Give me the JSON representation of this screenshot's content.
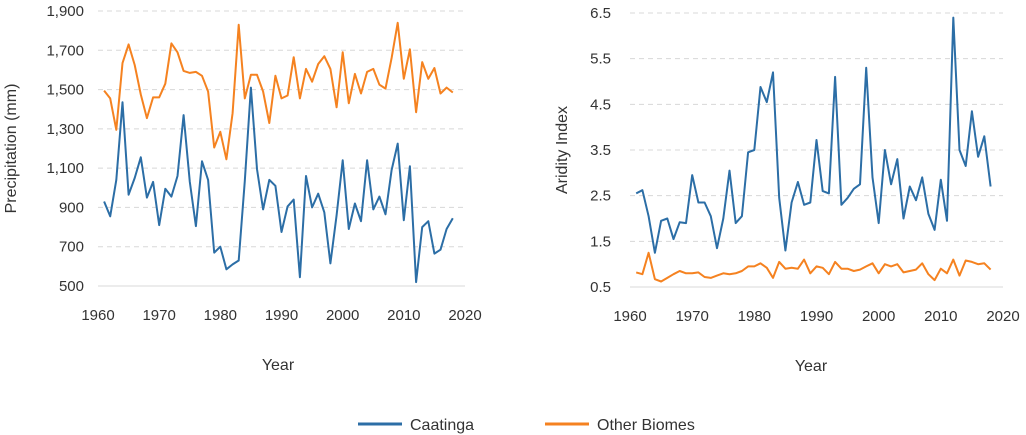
{
  "chart_data": [
    {
      "type": "line",
      "title": "",
      "xlabel": "Year",
      "ylabel": "Precipitation (mm)",
      "xlim": [
        1960,
        2020
      ],
      "ylim": [
        500,
        1900
      ],
      "xticks": [
        "1960",
        "1970",
        "1980",
        "1990",
        "2000",
        "2010",
        "2020"
      ],
      "yticks": [
        "500",
        "700",
        "900",
        "1,100",
        "1,300",
        "1,500",
        "1,700",
        "1,900"
      ],
      "grid": "horizontal dashed",
      "x": [
        1961,
        1962,
        1963,
        1964,
        1965,
        1966,
        1967,
        1968,
        1969,
        1970,
        1971,
        1972,
        1973,
        1974,
        1975,
        1976,
        1977,
        1978,
        1979,
        1980,
        1981,
        1982,
        1983,
        1984,
        1985,
        1986,
        1987,
        1988,
        1989,
        1990,
        1991,
        1992,
        1993,
        1994,
        1995,
        1996,
        1997,
        1998,
        1999,
        2000,
        2001,
        2002,
        2003,
        2004,
        2005,
        2006,
        2007,
        2008,
        2009,
        2010,
        2011,
        2012,
        2013,
        2014,
        2015,
        2016,
        2017,
        2018
      ],
      "series": [
        {
          "name": "Caatinga",
          "color": "#2c6ea6",
          "values": [
            930,
            855,
            1040,
            1435,
            965,
            1050,
            1155,
            950,
            1030,
            810,
            995,
            955,
            1060,
            1370,
            1030,
            805,
            1135,
            1040,
            670,
            700,
            585,
            610,
            630,
            1035,
            1510,
            1095,
            890,
            1040,
            1010,
            775,
            905,
            940,
            545,
            1060,
            900,
            970,
            875,
            615,
            860,
            1140,
            790,
            920,
            830,
            1140,
            890,
            955,
            865,
            1090,
            1225,
            835,
            1110,
            520,
            800,
            830,
            665,
            685,
            790,
            845
          ]
        },
        {
          "name": "Other Biomes",
          "color": "#f58220",
          "values": [
            1495,
            1455,
            1295,
            1635,
            1730,
            1625,
            1475,
            1355,
            1460,
            1460,
            1530,
            1735,
            1690,
            1595,
            1585,
            1590,
            1570,
            1490,
            1205,
            1285,
            1145,
            1380,
            1830,
            1455,
            1575,
            1575,
            1490,
            1330,
            1570,
            1455,
            1470,
            1665,
            1455,
            1605,
            1540,
            1630,
            1670,
            1605,
            1410,
            1690,
            1430,
            1580,
            1480,
            1590,
            1605,
            1525,
            1505,
            1660,
            1840,
            1555,
            1705,
            1385,
            1640,
            1555,
            1610,
            1480,
            1510,
            1485
          ]
        }
      ]
    },
    {
      "type": "line",
      "title": "",
      "xlabel": "Year",
      "ylabel": "Aridity Index",
      "xlim": [
        1960,
        2020
      ],
      "ylim": [
        0.5,
        6.5
      ],
      "xticks": [
        "1960",
        "1970",
        "1980",
        "1990",
        "2000",
        "2010",
        "2020"
      ],
      "yticks": [
        "0.5",
        "1.5",
        "2.5",
        "3.5",
        "4.5",
        "5.5",
        "6.5"
      ],
      "grid": "horizontal dashed",
      "x": [
        1961,
        1962,
        1963,
        1964,
        1965,
        1966,
        1967,
        1968,
        1969,
        1970,
        1971,
        1972,
        1973,
        1974,
        1975,
        1976,
        1977,
        1978,
        1979,
        1980,
        1981,
        1982,
        1983,
        1984,
        1985,
        1986,
        1987,
        1988,
        1989,
        1990,
        1991,
        1992,
        1993,
        1994,
        1995,
        1996,
        1997,
        1998,
        1999,
        2000,
        2001,
        2002,
        2003,
        2004,
        2005,
        2006,
        2007,
        2008,
        2009,
        2010,
        2011,
        2012,
        2013,
        2014,
        2015,
        2016,
        2017,
        2018
      ],
      "series": [
        {
          "name": "Caatinga",
          "color": "#2c6ea6",
          "values": [
            2.55,
            2.62,
            2.05,
            1.25,
            1.95,
            2.0,
            1.55,
            1.92,
            1.9,
            2.95,
            2.35,
            2.35,
            2.05,
            1.35,
            2.0,
            3.05,
            1.9,
            2.05,
            3.45,
            3.5,
            4.88,
            4.55,
            5.2,
            2.45,
            1.3,
            2.35,
            2.8,
            2.3,
            2.35,
            3.72,
            2.6,
            2.55,
            5.1,
            2.3,
            2.45,
            2.65,
            2.75,
            5.3,
            2.9,
            1.9,
            3.5,
            2.75,
            3.3,
            2.0,
            2.7,
            2.4,
            2.9,
            2.1,
            1.75,
            2.85,
            1.95,
            6.4,
            3.5,
            3.15,
            4.35,
            3.35,
            3.8,
            2.7
          ]
        },
        {
          "name": "Other Biomes",
          "color": "#f58220",
          "values": [
            0.82,
            0.78,
            1.25,
            0.67,
            0.62,
            0.7,
            0.78,
            0.85,
            0.8,
            0.8,
            0.82,
            0.72,
            0.7,
            0.75,
            0.8,
            0.78,
            0.8,
            0.85,
            0.95,
            0.95,
            1.02,
            0.92,
            0.7,
            1.05,
            0.9,
            0.92,
            0.9,
            1.1,
            0.8,
            0.95,
            0.92,
            0.78,
            1.05,
            0.9,
            0.9,
            0.85,
            0.88,
            0.95,
            1.02,
            0.8,
            1.0,
            0.95,
            1.0,
            0.82,
            0.85,
            0.88,
            1.02,
            0.78,
            0.65,
            0.9,
            0.8,
            1.1,
            0.75,
            1.08,
            1.05,
            1.0,
            1.02,
            0.88
          ]
        }
      ]
    }
  ],
  "legend": {
    "placement": "bottom-center",
    "items": [
      {
        "label": "Caatinga",
        "color": "#2c6ea6"
      },
      {
        "label": "Other Biomes",
        "color": "#f58220"
      }
    ]
  }
}
